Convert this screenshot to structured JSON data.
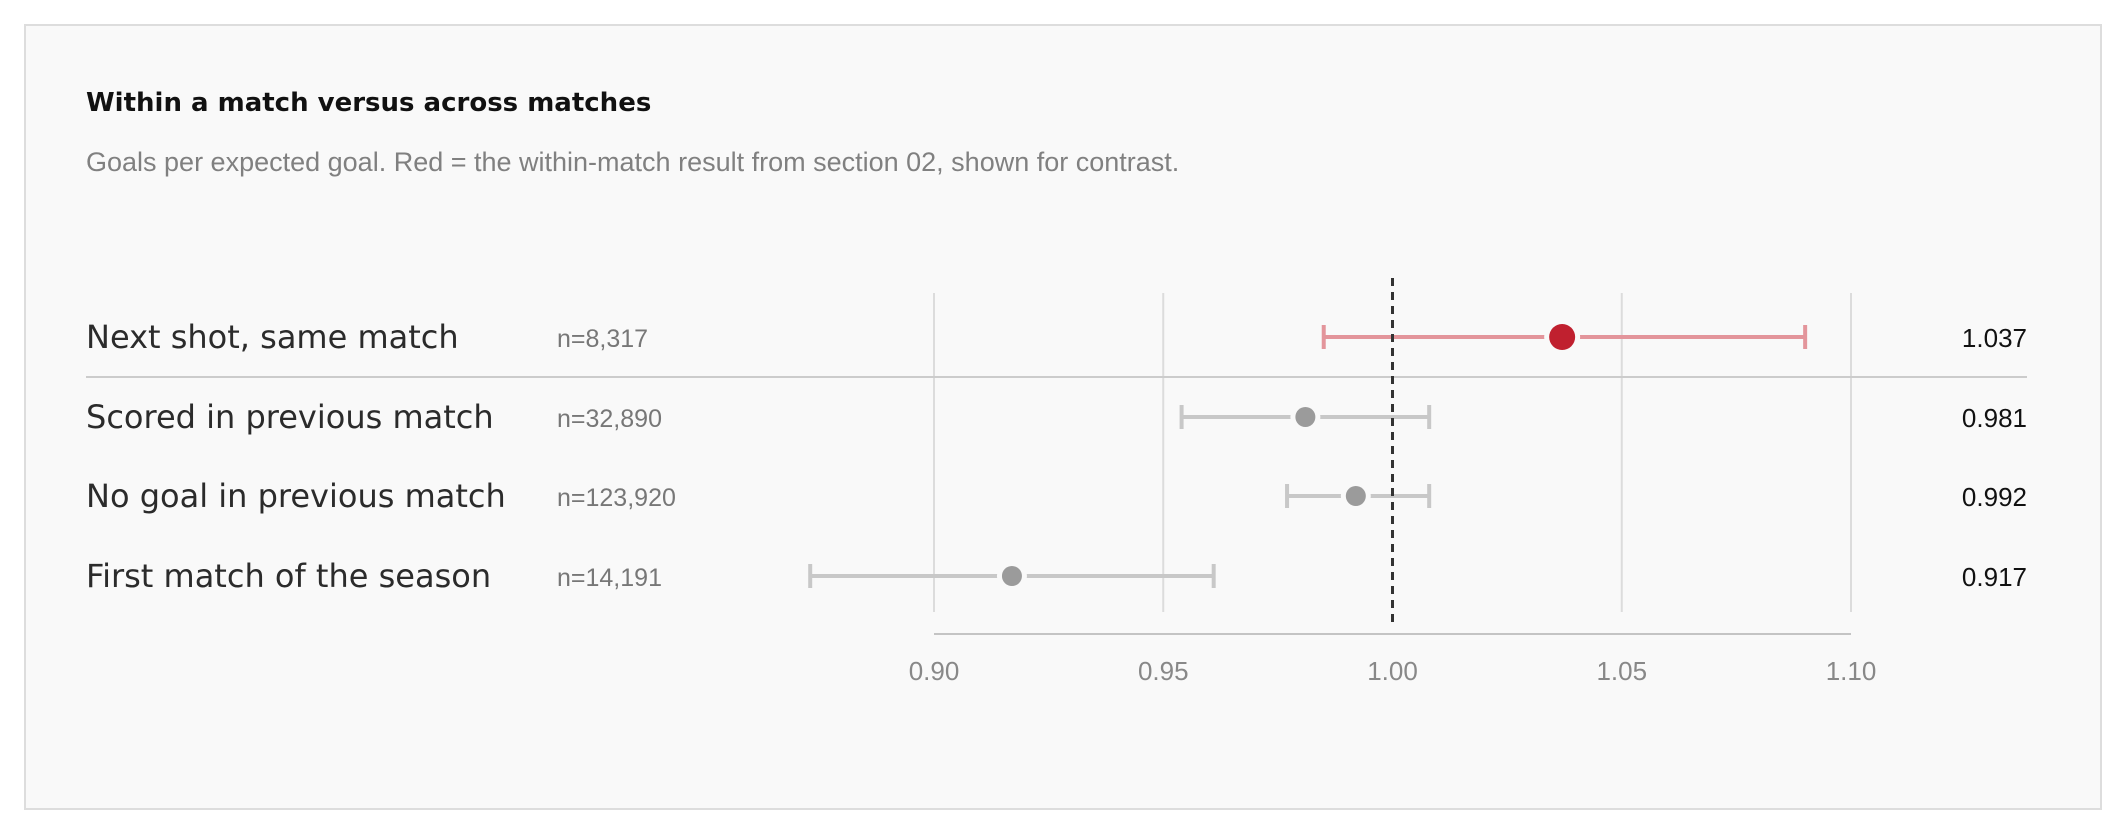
{
  "chart_data": {
    "type": "forest",
    "title": "Within a match versus across matches",
    "subtitle": "Goals per expected goal. Red = the within-match result from section 02, shown for contrast.",
    "xlim": [
      0.9,
      1.1
    ],
    "xticks": [
      "0.90",
      "0.95",
      "1.00",
      "1.05",
      "1.10"
    ],
    "reference_line": 1.0,
    "grid": true,
    "highlight_color": "#c0202f",
    "highlight_ci_color": "#e3959b",
    "muted_color": "#9b9b9b",
    "muted_ci_color": "#c8c8c8",
    "rows": [
      {
        "label": "Next shot, same match",
        "n": "n=8,317",
        "estimate": 1.037,
        "ci": [
          0.985,
          1.09
        ],
        "value_label": "1.037",
        "highlight": true
      },
      {
        "label": "Scored in previous match",
        "n": "n=32,890",
        "estimate": 0.981,
        "ci": [
          0.954,
          1.008
        ],
        "value_label": "0.981",
        "highlight": false
      },
      {
        "label": "No goal in previous match",
        "n": "n=123,920",
        "estimate": 0.992,
        "ci": [
          0.977,
          1.008
        ],
        "value_label": "0.992",
        "highlight": false
      },
      {
        "label": "First match of the season",
        "n": "n=14,191",
        "estimate": 0.917,
        "ci": [
          0.873,
          0.961
        ],
        "value_label": "0.917",
        "highlight": false
      }
    ]
  }
}
